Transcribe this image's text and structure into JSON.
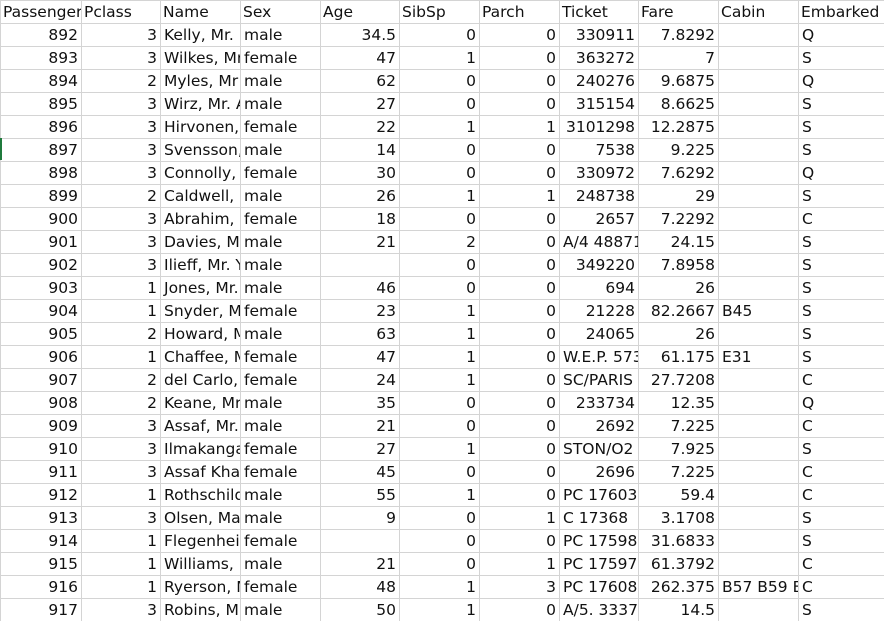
{
  "headers": [
    "PassengerId",
    "Pclass",
    "Name",
    "Sex",
    "Age",
    "SibSp",
    "Parch",
    "Ticket",
    "Fare",
    "Cabin",
    "Embarked"
  ],
  "header_display": [
    "Passenger",
    "Pclass",
    "Name",
    "Sex",
    "Age",
    "SibSp",
    "Parch",
    "Ticket",
    "Fare",
    "Cabin",
    "Embarked"
  ],
  "rows": [
    [
      "892",
      "3",
      "Kelly, Mr.",
      "male",
      "34.5",
      "0",
      "0",
      "330911",
      "7.8292",
      "",
      "Q"
    ],
    [
      "893",
      "3",
      "Wilkes, Mr",
      "female",
      "47",
      "1",
      "0",
      "363272",
      "7",
      "",
      "S"
    ],
    [
      "894",
      "2",
      "Myles, Mr",
      "male",
      "62",
      "0",
      "0",
      "240276",
      "9.6875",
      "",
      "Q"
    ],
    [
      "895",
      "3",
      "Wirz, Mr. A",
      "male",
      "27",
      "0",
      "0",
      "315154",
      "8.6625",
      "",
      "S"
    ],
    [
      "896",
      "3",
      "Hirvonen,",
      "female",
      "22",
      "1",
      "1",
      "3101298",
      "12.2875",
      "",
      "S"
    ],
    [
      "897",
      "3",
      "Svensson,",
      "male",
      "14",
      "0",
      "0",
      "7538",
      "9.225",
      "",
      "S"
    ],
    [
      "898",
      "3",
      "Connolly,",
      "female",
      "30",
      "0",
      "0",
      "330972",
      "7.6292",
      "",
      "Q"
    ],
    [
      "899",
      "2",
      "Caldwell, M",
      "male",
      "26",
      "1",
      "1",
      "248738",
      "29",
      "",
      "S"
    ],
    [
      "900",
      "3",
      "Abrahim,",
      "female",
      "18",
      "0",
      "0",
      "2657",
      "7.2292",
      "",
      "C"
    ],
    [
      "901",
      "3",
      "Davies, M",
      "male",
      "21",
      "2",
      "0",
      "A/4 48871",
      "24.15",
      "",
      "S"
    ],
    [
      "902",
      "3",
      "Ilieff, Mr. Y",
      "male",
      "",
      "0",
      "0",
      "349220",
      "7.8958",
      "",
      "S"
    ],
    [
      "903",
      "1",
      "Jones, Mr.",
      "male",
      "46",
      "0",
      "0",
      "694",
      "26",
      "",
      "S"
    ],
    [
      "904",
      "1",
      "Snyder, M",
      "female",
      "23",
      "1",
      "0",
      "21228",
      "82.2667",
      "B45",
      "S"
    ],
    [
      "905",
      "2",
      "Howard, M",
      "male",
      "63",
      "1",
      "0",
      "24065",
      "26",
      "",
      "S"
    ],
    [
      "906",
      "1",
      "Chaffee, M",
      "female",
      "47",
      "1",
      "0",
      "W.E.P. 573",
      "61.175",
      "E31",
      "S"
    ],
    [
      "907",
      "2",
      "del Carlo,",
      "female",
      "24",
      "1",
      "0",
      "SC/PARIS",
      "27.7208",
      "",
      "C"
    ],
    [
      "908",
      "2",
      "Keane, Mr",
      "male",
      "35",
      "0",
      "0",
      "233734",
      "12.35",
      "",
      "Q"
    ],
    [
      "909",
      "3",
      "Assaf, Mr.",
      "male",
      "21",
      "0",
      "0",
      "2692",
      "7.225",
      "",
      "C"
    ],
    [
      "910",
      "3",
      "Ilmakanga",
      "female",
      "27",
      "1",
      "0",
      "STON/O2",
      "7.925",
      "",
      "S"
    ],
    [
      "911",
      "3",
      "Assaf Khal",
      "female",
      "45",
      "0",
      "0",
      "2696",
      "7.225",
      "",
      "C"
    ],
    [
      "912",
      "1",
      "Rothschild",
      "male",
      "55",
      "1",
      "0",
      "PC 17603",
      "59.4",
      "",
      "C"
    ],
    [
      "913",
      "3",
      "Olsen, Ma",
      "male",
      "9",
      "0",
      "1",
      "C 17368",
      "3.1708",
      "",
      "S"
    ],
    [
      "914",
      "1",
      "Flegenheir",
      "female",
      "",
      "0",
      "0",
      "PC 17598",
      "31.6833",
      "",
      "S"
    ],
    [
      "915",
      "1",
      "Williams, I",
      "male",
      "21",
      "0",
      "1",
      "PC 17597",
      "61.3792",
      "",
      "C"
    ],
    [
      "916",
      "1",
      "Ryerson, M",
      "female",
      "48",
      "1",
      "3",
      "PC 17608",
      "262.375",
      "B57 B59 B",
      "C"
    ],
    [
      "917",
      "3",
      "Robins, M",
      "male",
      "50",
      "1",
      "0",
      "A/5. 3337",
      "14.5",
      "",
      "S"
    ]
  ]
}
